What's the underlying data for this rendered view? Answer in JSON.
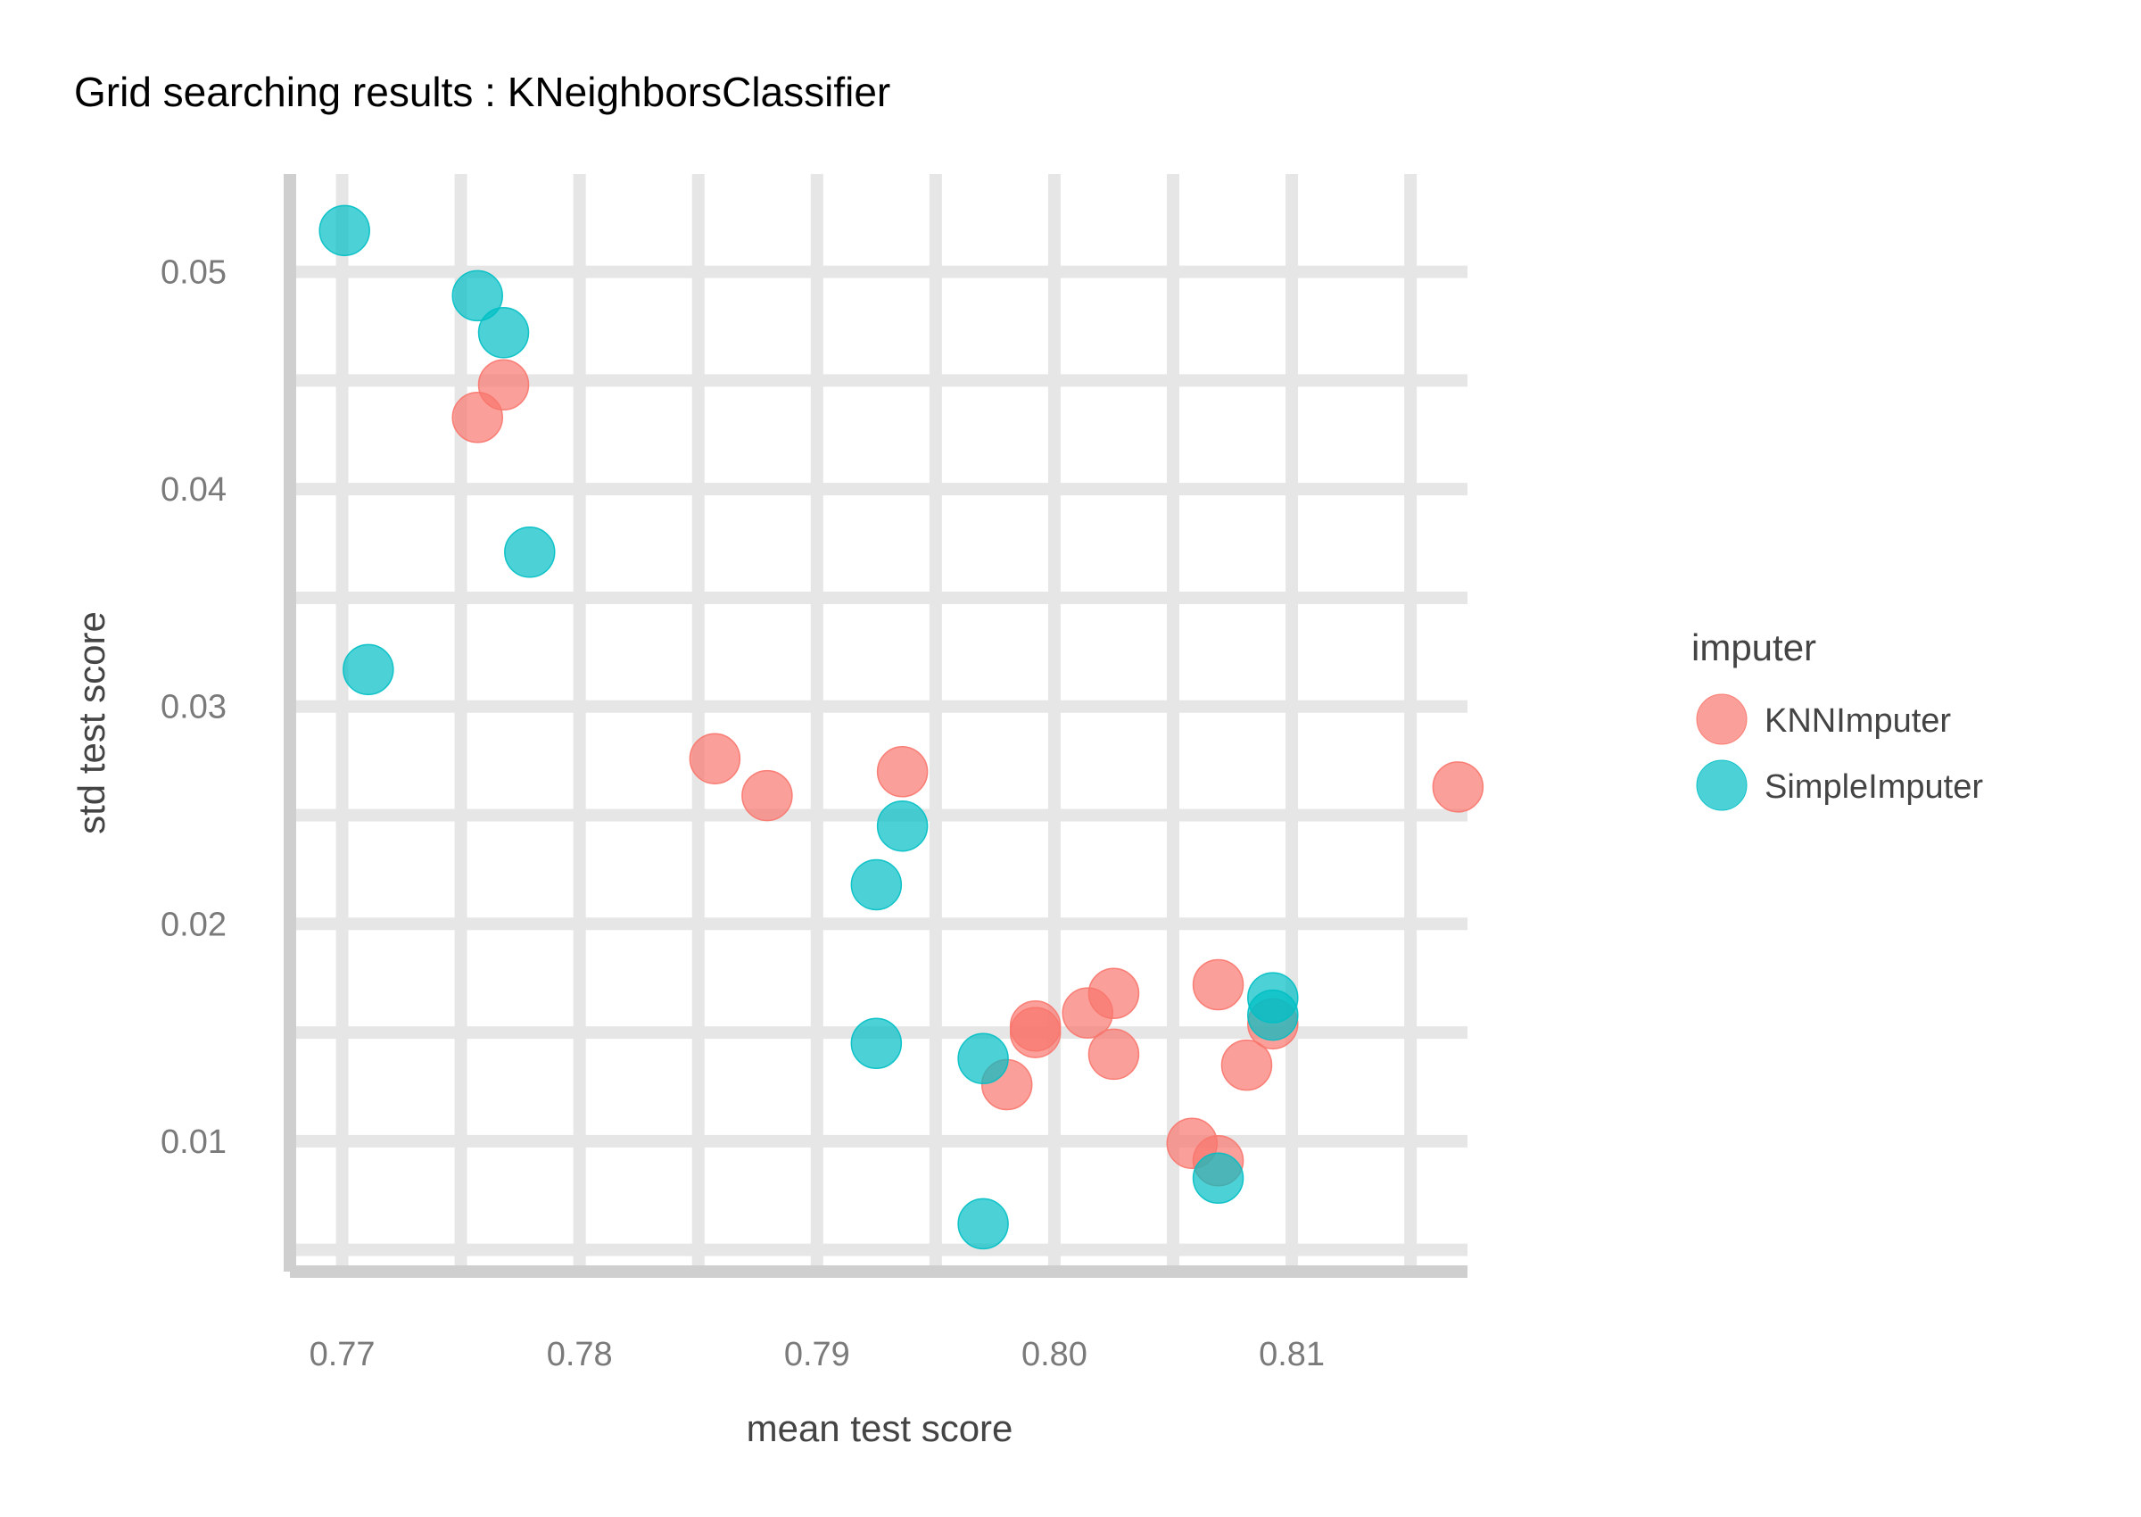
{
  "chart_data": {
    "type": "scatter",
    "title": "Grid searching results :  KNeighborsClassifier",
    "xlabel": "mean test score",
    "ylabel": "std test score",
    "xlim": [
      0.7678,
      0.8174
    ],
    "ylim": [
      0.004,
      0.0545
    ],
    "x_ticks": [
      0.77,
      0.78,
      0.79,
      0.8,
      0.81
    ],
    "x_tick_labels": [
      "0.77",
      "0.78",
      "0.79",
      "0.80",
      "0.81"
    ],
    "y_ticks": [
      0.01,
      0.02,
      0.03,
      0.04,
      0.05
    ],
    "y_tick_labels": [
      "0.01",
      "0.02",
      "0.03",
      "0.04",
      "0.05"
    ],
    "grid": true,
    "legend": {
      "title": "imputer",
      "position": "right"
    },
    "series": [
      {
        "name": "KNNImputer",
        "color": "#F8766D",
        "points": [
          [
            0.7768,
            0.0448
          ],
          [
            0.7757,
            0.0433
          ],
          [
            0.7857,
            0.0276
          ],
          [
            0.7879,
            0.0259
          ],
          [
            0.7936,
            0.027
          ],
          [
            0.817,
            0.0263
          ],
          [
            0.8025,
            0.0168
          ],
          [
            0.8014,
            0.0159
          ],
          [
            0.7992,
            0.0153
          ],
          [
            0.7992,
            0.015
          ],
          [
            0.8025,
            0.014
          ],
          [
            0.798,
            0.0126
          ],
          [
            0.8069,
            0.0172
          ],
          [
            0.8092,
            0.0154
          ],
          [
            0.8081,
            0.0135
          ],
          [
            0.8058,
            0.0099
          ],
          [
            0.8069,
            0.0091
          ]
        ]
      },
      {
        "name": "SimpleImputer",
        "color": "#00BFC4",
        "points": [
          [
            0.7701,
            0.0519
          ],
          [
            0.7757,
            0.0489
          ],
          [
            0.7768,
            0.0472
          ],
          [
            0.7779,
            0.0371
          ],
          [
            0.7711,
            0.0317
          ],
          [
            0.7936,
            0.0245
          ],
          [
            0.7925,
            0.0218
          ],
          [
            0.7925,
            0.0145
          ],
          [
            0.797,
            0.0138
          ],
          [
            0.797,
            0.0062
          ],
          [
            0.8092,
            0.0166
          ],
          [
            0.8092,
            0.0158
          ],
          [
            0.8069,
            0.0083
          ]
        ]
      }
    ]
  }
}
